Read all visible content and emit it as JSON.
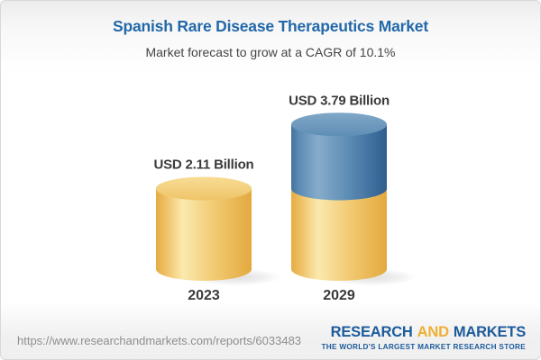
{
  "header": {
    "title": "Spanish Rare Disease Therapeutics Market",
    "subtitle": "Market forecast to grow at a CAGR of 10.1%"
  },
  "chart_data": {
    "type": "bar",
    "style": "3d-cylinder",
    "categories": [
      "2023",
      "2029"
    ],
    "values": [
      2.11,
      3.79
    ],
    "data_labels": [
      "USD 2.11 Billion",
      "USD 3.79 Billion"
    ],
    "unit": "USD Billion",
    "cagr_pct": 10.1,
    "ylim": [
      0,
      4.2
    ],
    "grid": false,
    "legend": false,
    "stacking_note": "2029 cylinder is stacked: gold bottom segment equals the 2023 value (2.11), blue top segment is the forecast growth (1.68)",
    "colors": {
      "gold_edge": "#E3A93E",
      "gold_light": "#FBE9AE",
      "gold_cap": "#F4D382",
      "blue_edge": "#2E5E8F",
      "blue_light": "#86ACCB",
      "blue_cap": "#6D98BD",
      "label_text": "#3A3A3A"
    }
  },
  "footer": {
    "url": "https://www.researchandmarkets.com/reports/6033483",
    "logo": {
      "word1": "RESEARCH",
      "word2": "AND",
      "word3": "MARKETS",
      "tagline": "THE WORLD'S LARGEST MARKET RESEARCH STORE",
      "brand_blue": "#1D5B9B",
      "brand_gold": "#EFAF32"
    }
  },
  "theme": {
    "title_color": "#2368A8",
    "subtitle_color": "#444444",
    "url_color": "#8E8E8E"
  }
}
